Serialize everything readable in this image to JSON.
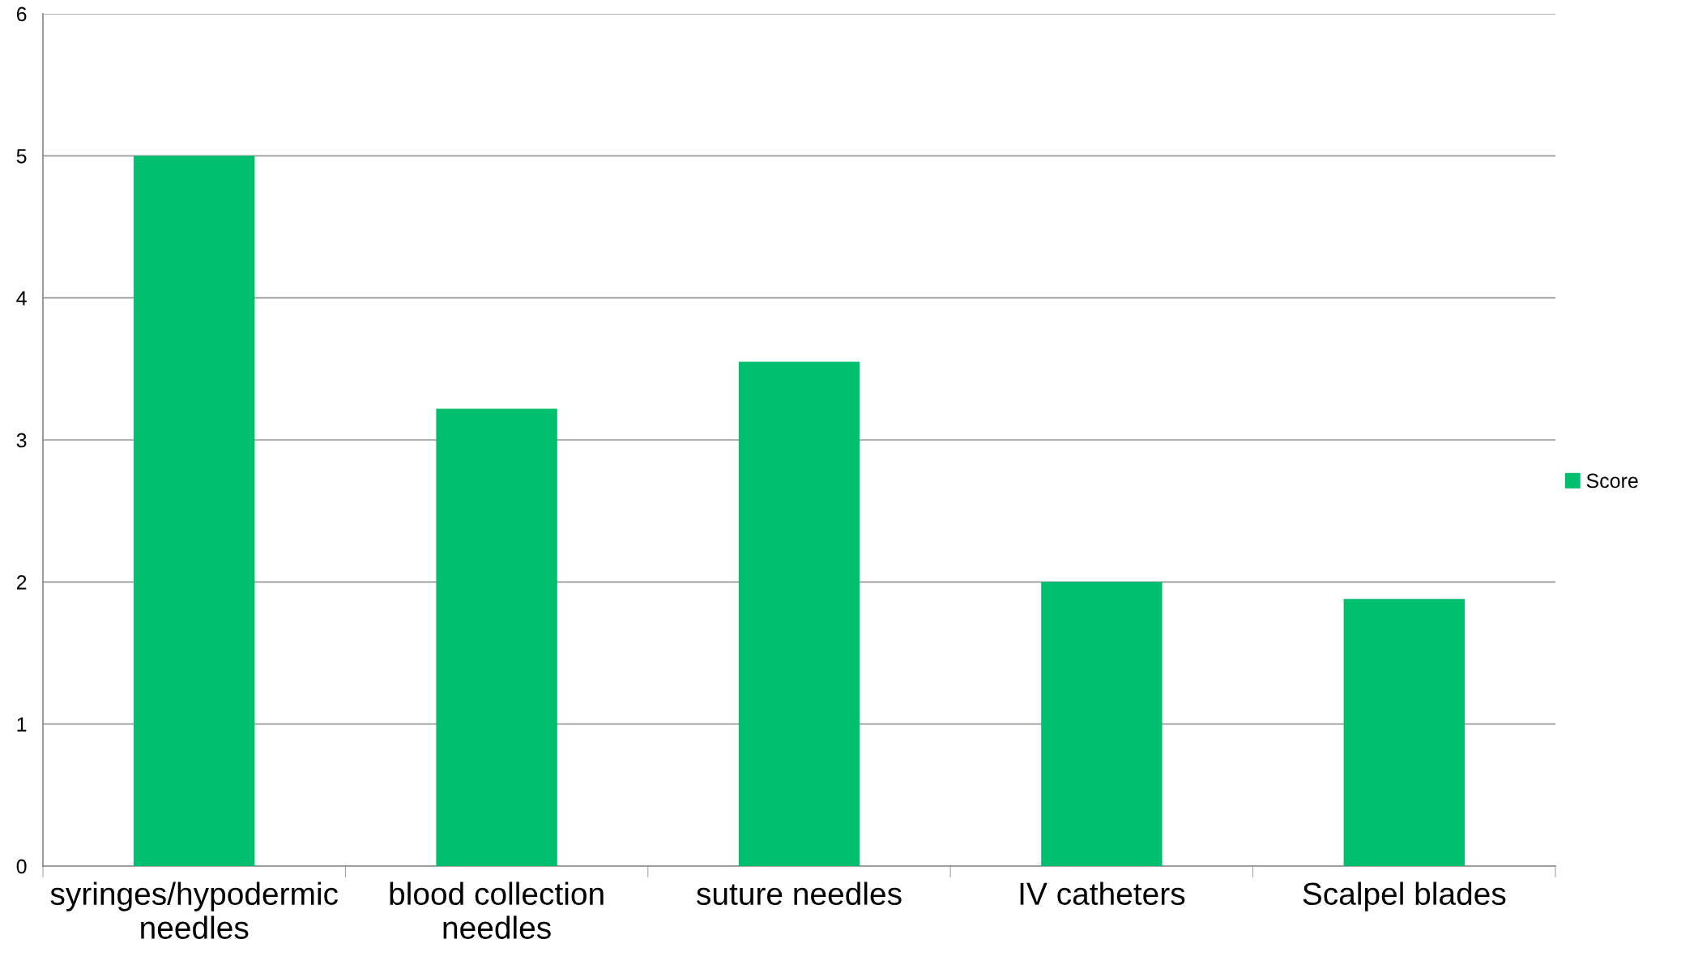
{
  "chart_data": {
    "type": "bar",
    "categories": [
      "syringes/hypodermic needles",
      "blood collection needles",
      "suture needles",
      "IV catheters",
      "Scalpel blades"
    ],
    "series": [
      {
        "name": "Score",
        "color": "#00bf6f",
        "values": [
          5,
          3.22,
          3.55,
          2,
          1.88
        ]
      }
    ],
    "ylim": [
      0,
      6
    ],
    "yticks": [
      0,
      1,
      2,
      3,
      4,
      5,
      6
    ],
    "grid": "y",
    "legend": "right"
  }
}
